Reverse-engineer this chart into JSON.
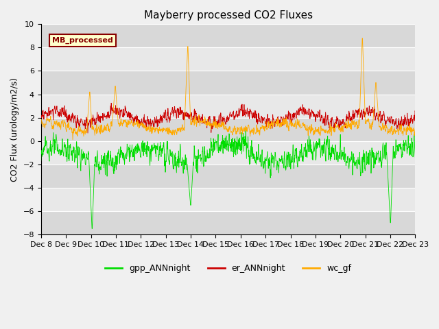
{
  "title": "Mayberry processed CO2 Fluxes",
  "ylabel": "CO2 Flux (urology/m2/s)",
  "ylim": [
    -8,
    10
  ],
  "yticks": [
    -8,
    -6,
    -4,
    -2,
    0,
    2,
    4,
    6,
    8,
    10
  ],
  "xlabel_dates": [
    "Dec 8",
    "Dec 9",
    "Dec 10",
    "Dec 11",
    "Dec 12",
    "Dec 13",
    "Dec 14",
    "Dec 15",
    "Dec 16",
    "Dec 17",
    "Dec 18",
    "Dec 19",
    "Dec 20",
    "Dec 21",
    "Dec 22",
    "Dec 23"
  ],
  "legend_label": "MB_processed",
  "legend_bg": "#ffffcc",
  "legend_edge": "#880000",
  "gpp_color": "#00dd00",
  "er_color": "#cc0000",
  "wc_color": "#ffaa00",
  "gpp_label": "gpp_ANNnight",
  "er_label": "er_ANNnight",
  "wc_label": "wc_gf",
  "bg_color": "#f0f0f0",
  "plot_bg": "#e8e8e8",
  "band_color": "#d8d8d8",
  "title_fontsize": 11,
  "axis_fontsize": 8,
  "n_points": 1440
}
